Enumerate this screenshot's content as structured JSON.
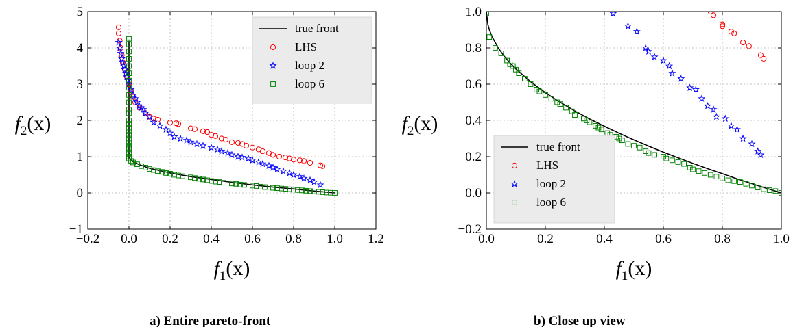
{
  "chart_data": [
    {
      "type": "scatter",
      "caption": "a) Entire pareto-front",
      "xlabel_main": "f",
      "xlabel_sub": "1",
      "xlabel_arg": "(x)",
      "ylabel_main": "f",
      "ylabel_sub": "2",
      "ylabel_arg": "(x)",
      "xlim": [
        -0.2,
        1.2
      ],
      "ylim": [
        -1,
        5
      ],
      "xticks": [
        -0.2,
        0.0,
        0.2,
        0.4,
        0.6,
        0.8,
        1.0,
        1.2
      ],
      "xtick_labels": [
        "−0.2",
        "0.0",
        "0.2",
        "0.4",
        "0.6",
        "0.8",
        "1.0",
        "1.2"
      ],
      "yticks": [
        -1,
        0,
        1,
        2,
        3,
        4,
        5
      ],
      "ytick_labels": [
        "−1",
        "0",
        "1",
        "2",
        "3",
        "4",
        "5"
      ],
      "grid": true,
      "legend_position": "top-right",
      "true_front": {
        "name": "true front",
        "color": "#000000",
        "x": [
          0.0,
          0.0,
          0.0,
          0.0,
          0.0,
          0.0,
          0.0,
          0.02,
          0.05,
          0.1,
          0.2,
          0.3,
          0.4,
          0.5,
          0.6,
          0.7,
          0.8,
          0.9,
          1.0
        ],
        "y": [
          4.2,
          3.5,
          3.0,
          2.5,
          2.0,
          1.5,
          0.95,
          0.86,
          0.78,
          0.68,
          0.55,
          0.45,
          0.37,
          0.29,
          0.22,
          0.16,
          0.11,
          0.05,
          0.0
        ]
      },
      "series": [
        {
          "name": "LHS",
          "marker": "circle",
          "color": "#ff0000",
          "x": [
            -0.05,
            -0.05,
            -0.045,
            -0.04,
            -0.035,
            -0.03,
            -0.02,
            -0.01,
            0.0,
            0.01,
            0.02,
            0.03,
            0.05,
            0.08,
            0.1,
            0.12,
            0.14,
            0.2,
            0.23,
            0.24,
            0.3,
            0.32,
            0.36,
            0.38,
            0.4,
            0.42,
            0.45,
            0.47,
            0.5,
            0.53,
            0.55,
            0.57,
            0.6,
            0.63,
            0.65,
            0.68,
            0.7,
            0.73,
            0.76,
            0.78,
            0.8,
            0.83,
            0.85,
            0.88,
            0.93,
            0.94
          ],
          "y": [
            4.57,
            4.4,
            4.2,
            4.0,
            3.8,
            3.6,
            3.4,
            3.2,
            3.0,
            2.8,
            2.65,
            2.5,
            2.35,
            2.2,
            2.1,
            2.05,
            2.02,
            1.94,
            1.92,
            1.9,
            1.78,
            1.76,
            1.7,
            1.68,
            1.6,
            1.57,
            1.5,
            1.47,
            1.4,
            1.38,
            1.35,
            1.3,
            1.25,
            1.2,
            1.15,
            1.1,
            1.05,
            1.0,
            0.98,
            0.95,
            0.92,
            0.9,
            0.88,
            0.83,
            0.76,
            0.74
          ]
        },
        {
          "name": "loop 2",
          "marker": "star",
          "color": "#0000ff",
          "x": [
            -0.05,
            -0.045,
            -0.04,
            -0.035,
            -0.03,
            -0.025,
            -0.02,
            -0.015,
            -0.01,
            -0.005,
            0.0,
            0.01,
            0.02,
            0.03,
            0.04,
            0.05,
            0.06,
            0.07,
            0.08,
            0.1,
            0.12,
            0.15,
            0.18,
            0.2,
            0.22,
            0.25,
            0.28,
            0.3,
            0.33,
            0.36,
            0.4,
            0.43,
            0.45,
            0.48,
            0.5,
            0.53,
            0.55,
            0.58,
            0.6,
            0.63,
            0.65,
            0.68,
            0.7,
            0.72,
            0.75,
            0.78,
            0.8,
            0.83,
            0.85,
            0.88,
            0.9,
            0.93
          ],
          "y": [
            4.15,
            4.0,
            3.85,
            3.7,
            3.6,
            3.5,
            3.4,
            3.3,
            3.2,
            3.1,
            3.0,
            2.85,
            2.7,
            2.6,
            2.5,
            2.4,
            2.35,
            2.3,
            2.2,
            2.1,
            1.95,
            1.85,
            1.75,
            1.65,
            1.55,
            1.5,
            1.45,
            1.4,
            1.35,
            1.3,
            1.25,
            1.2,
            1.15,
            1.1,
            1.05,
            1.0,
            0.98,
            0.95,
            0.9,
            0.85,
            0.8,
            0.75,
            0.7,
            0.65,
            0.6,
            0.55,
            0.5,
            0.45,
            0.4,
            0.35,
            0.3,
            0.22
          ]
        },
        {
          "name": "loop 6",
          "marker": "square",
          "color": "#008000",
          "x": [
            0.0,
            0.0,
            0.0,
            0.0,
            0.0,
            0.0,
            0.0,
            0.0,
            0.0,
            0.0,
            0.0,
            0.0,
            0.0,
            0.0,
            0.0,
            0.0,
            0.0,
            0.0,
            0.0,
            0.0,
            0.0,
            0.0,
            0.0,
            0.0,
            0.0,
            0.01,
            0.02,
            0.04,
            0.06,
            0.08,
            0.1,
            0.12,
            0.14,
            0.16,
            0.18,
            0.2,
            0.22,
            0.24,
            0.26,
            0.3,
            0.32,
            0.34,
            0.36,
            0.38,
            0.4,
            0.42,
            0.44,
            0.46,
            0.5,
            0.52,
            0.54,
            0.56,
            0.6,
            0.62,
            0.64,
            0.66,
            0.7,
            0.72,
            0.74,
            0.76,
            0.78,
            0.8,
            0.82,
            0.84,
            0.86,
            0.88,
            0.9,
            0.92,
            0.94,
            0.96,
            0.98,
            1.0
          ],
          "y": [
            4.25,
            4.1,
            3.9,
            3.7,
            3.5,
            3.3,
            3.1,
            2.9,
            2.7,
            2.5,
            2.3,
            2.2,
            2.0,
            1.9,
            1.8,
            1.7,
            1.6,
            1.5,
            1.4,
            1.3,
            1.25,
            1.2,
            1.1,
            1.0,
            0.95,
            0.88,
            0.84,
            0.79,
            0.74,
            0.7,
            0.66,
            0.63,
            0.6,
            0.58,
            0.55,
            0.53,
            0.5,
            0.48,
            0.46,
            0.43,
            0.41,
            0.39,
            0.37,
            0.35,
            0.33,
            0.31,
            0.3,
            0.28,
            0.26,
            0.25,
            0.23,
            0.22,
            0.2,
            0.19,
            0.17,
            0.16,
            0.14,
            0.13,
            0.12,
            0.11,
            0.1,
            0.09,
            0.08,
            0.07,
            0.06,
            0.05,
            0.04,
            0.03,
            0.02,
            0.01,
            0.005,
            0.0
          ]
        }
      ]
    },
    {
      "type": "scatter",
      "caption": "b) Close up view",
      "xlabel_main": "f",
      "xlabel_sub": "1",
      "xlabel_arg": "(x)",
      "ylabel_main": "f",
      "ylabel_sub": "2",
      "ylabel_arg": "(x)",
      "xlim": [
        0.0,
        1.0
      ],
      "ylim": [
        -0.2,
        1.0
      ],
      "xticks": [
        0.0,
        0.2,
        0.4,
        0.6,
        0.8,
        1.0
      ],
      "xtick_labels": [
        "0.0",
        "0.2",
        "0.4",
        "0.6",
        "0.8",
        "1.0"
      ],
      "yticks": [
        -0.2,
        0.0,
        0.2,
        0.4,
        0.6,
        0.8,
        1.0
      ],
      "ytick_labels": [
        "−0.2",
        "0.0",
        "0.2",
        "0.4",
        "0.6",
        "0.8",
        "1.0"
      ],
      "grid": true,
      "legend_position": "bottom-left",
      "true_front": {
        "name": "true front",
        "color": "#000000",
        "x": [
          0.0,
          0.005,
          0.01,
          0.02,
          0.04,
          0.06,
          0.08,
          0.1,
          0.15,
          0.2,
          0.25,
          0.3,
          0.35,
          0.4,
          0.45,
          0.5,
          0.55,
          0.6,
          0.65,
          0.7,
          0.75,
          0.8,
          0.85,
          0.9,
          0.95,
          1.0
        ],
        "y": [
          1.0,
          0.93,
          0.9,
          0.86,
          0.8,
          0.755,
          0.717,
          0.684,
          0.613,
          0.553,
          0.5,
          0.452,
          0.408,
          0.368,
          0.329,
          0.293,
          0.258,
          0.225,
          0.194,
          0.163,
          0.134,
          0.106,
          0.078,
          0.051,
          0.025,
          0.0
        ]
      },
      "series": [
        {
          "name": "LHS",
          "marker": "circle",
          "color": "#ff0000",
          "x": [
            0.76,
            0.77,
            0.8,
            0.8,
            0.83,
            0.84,
            0.87,
            0.89,
            0.93,
            0.94
          ],
          "y": [
            1.0,
            0.98,
            0.93,
            0.92,
            0.89,
            0.88,
            0.83,
            0.81,
            0.76,
            0.74
          ]
        },
        {
          "name": "loop 2",
          "marker": "star",
          "color": "#0000ff",
          "x": [
            0.43,
            0.48,
            0.51,
            0.54,
            0.55,
            0.57,
            0.6,
            0.62,
            0.63,
            0.66,
            0.69,
            0.71,
            0.73,
            0.75,
            0.77,
            0.78,
            0.81,
            0.83,
            0.85,
            0.87,
            0.9,
            0.92,
            0.93
          ],
          "y": [
            0.99,
            0.92,
            0.89,
            0.8,
            0.78,
            0.75,
            0.73,
            0.7,
            0.66,
            0.63,
            0.58,
            0.57,
            0.52,
            0.48,
            0.46,
            0.42,
            0.41,
            0.37,
            0.35,
            0.3,
            0.27,
            0.23,
            0.21
          ]
        },
        {
          "name": "loop 6",
          "marker": "square",
          "color": "#008000",
          "x": [
            0.0,
            0.01,
            0.03,
            0.05,
            0.07,
            0.08,
            0.09,
            0.1,
            0.11,
            0.13,
            0.15,
            0.17,
            0.18,
            0.2,
            0.22,
            0.24,
            0.25,
            0.27,
            0.29,
            0.3,
            0.33,
            0.34,
            0.35,
            0.37,
            0.38,
            0.39,
            0.41,
            0.42,
            0.44,
            0.45,
            0.46,
            0.48,
            0.5,
            0.52,
            0.54,
            0.55,
            0.57,
            0.6,
            0.61,
            0.63,
            0.65,
            0.67,
            0.69,
            0.7,
            0.72,
            0.74,
            0.76,
            0.78,
            0.8,
            0.82,
            0.84,
            0.86,
            0.88,
            0.9,
            0.92,
            0.94,
            0.96,
            0.98,
            1.0
          ],
          "y": [
            0.99,
            0.86,
            0.8,
            0.77,
            0.73,
            0.71,
            0.7,
            0.68,
            0.66,
            0.63,
            0.6,
            0.57,
            0.56,
            0.54,
            0.52,
            0.5,
            0.49,
            0.47,
            0.45,
            0.43,
            0.41,
            0.4,
            0.39,
            0.37,
            0.36,
            0.35,
            0.33,
            0.32,
            0.31,
            0.3,
            0.29,
            0.27,
            0.26,
            0.25,
            0.23,
            0.22,
            0.21,
            0.2,
            0.19,
            0.18,
            0.17,
            0.16,
            0.14,
            0.13,
            0.12,
            0.11,
            0.1,
            0.09,
            0.08,
            0.07,
            0.065,
            0.06,
            0.05,
            0.04,
            0.03,
            0.02,
            0.015,
            0.01,
            0.0
          ]
        }
      ]
    }
  ]
}
